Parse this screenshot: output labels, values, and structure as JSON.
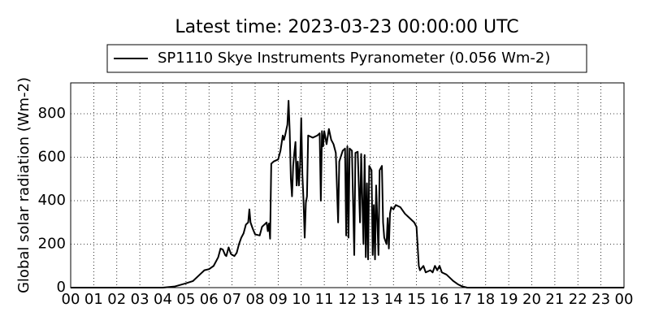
{
  "chart_data": {
    "type": "line",
    "title": "Latest time: 2023-03-23 00:00:00 UTC",
    "ylabel": "Global solar radiation (Wm-2)",
    "grid": true,
    "legend": "top",
    "xlim": [
      0,
      24
    ],
    "ylim": [
      0,
      942
    ],
    "yticks": [
      0,
      200,
      400,
      600,
      800
    ],
    "xticks": [
      {
        "value": 0,
        "label": "00"
      },
      {
        "value": 1,
        "label": "01"
      },
      {
        "value": 2,
        "label": "02"
      },
      {
        "value": 3,
        "label": "03"
      },
      {
        "value": 4,
        "label": "04"
      },
      {
        "value": 5,
        "label": "05"
      },
      {
        "value": 6,
        "label": "06"
      },
      {
        "value": 7,
        "label": "07"
      },
      {
        "value": 8,
        "label": "08"
      },
      {
        "value": 9,
        "label": "09"
      },
      10,
      11,
      12,
      13,
      14,
      15,
      16,
      17,
      18,
      19,
      20,
      21,
      22,
      23,
      {
        "value": 24,
        "label": "00"
      }
    ],
    "x": [
      0,
      4,
      4.5,
      5,
      5.3,
      5.6,
      5.8,
      6,
      6.2,
      6.4,
      6.5,
      6.6,
      6.7,
      6.75,
      6.85,
      6.95,
      7.1,
      7.2,
      7.3,
      7.4,
      7.5,
      7.6,
      7.7,
      7.75,
      7.8,
      7.9,
      8,
      8.2,
      8.3,
      8.4,
      8.5,
      8.55,
      8.6,
      8.65,
      8.7,
      8.8,
      9,
      9.1,
      9.2,
      9.25,
      9.3,
      9.4,
      9.45,
      9.5,
      9.55,
      9.6,
      9.65,
      9.7,
      9.75,
      9.8,
      9.85,
      9.9,
      9.95,
      10,
      10.05,
      10.1,
      10.15,
      10.2,
      10.25,
      10.3,
      10.5,
      10.7,
      10.8,
      10.85,
      10.9,
      10.95,
      11,
      11.1,
      11.2,
      11.3,
      11.4,
      11.5,
      11.6,
      11.65,
      11.8,
      11.9,
      11.95,
      12,
      12.05,
      12.1,
      12.2,
      12.3,
      12.35,
      12.45,
      12.55,
      12.6,
      12.7,
      12.75,
      12.8,
      12.85,
      12.9,
      12.95,
      13.05,
      13.1,
      13.15,
      13.2,
      13.25,
      13.35,
      13.4,
      13.5,
      13.55,
      13.6,
      13.7,
      13.75,
      13.8,
      13.85,
      13.9,
      14,
      14.1,
      14.3,
      14.5,
      14.7,
      14.9,
      15,
      15.1,
      15.15,
      15.3,
      15.4,
      15.6,
      15.7,
      15.8,
      15.9,
      16,
      16.1,
      16.3,
      16.5,
      16.6,
      16.8,
      17,
      17.2,
      24
    ],
    "series": [
      {
        "name": "SP1110 Skye Instruments Pyranometer (0.056 Wm-2)",
        "color": "#000000",
        "values": [
          0,
          0,
          5,
          20,
          30,
          60,
          80,
          85,
          100,
          140,
          180,
          175,
          150,
          145,
          185,
          155,
          145,
          160,
          200,
          230,
          250,
          290,
          300,
          360,
          300,
          270,
          245,
          240,
          280,
          290,
          300,
          260,
          295,
          225,
          570,
          580,
          590,
          630,
          700,
          680,
          700,
          750,
          860,
          720,
          500,
          420,
          560,
          620,
          670,
          470,
          580,
          470,
          560,
          780,
          520,
          400,
          230,
          390,
          420,
          700,
          690,
          700,
          710,
          400,
          720,
          650,
          720,
          660,
          730,
          680,
          660,
          620,
          300,
          580,
          630,
          640,
          240,
          650,
          230,
          640,
          630,
          150,
          620,
          625,
          300,
          615,
          200,
          610,
          140,
          480,
          130,
          560,
          540,
          150,
          380,
          130,
          470,
          150,
          540,
          560,
          300,
          230,
          200,
          320,
          180,
          340,
          370,
          360,
          380,
          370,
          340,
          320,
          300,
          280,
          100,
          80,
          100,
          70,
          80,
          70,
          100,
          80,
          100,
          70,
          60,
          40,
          30,
          15,
          5,
          0,
          0
        ]
      }
    ]
  }
}
